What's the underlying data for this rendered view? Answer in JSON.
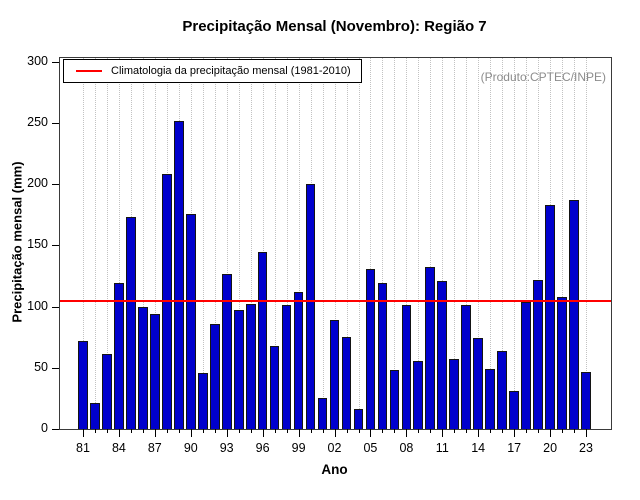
{
  "title": "Precipitação Mensal (Novembro): Região 7",
  "legend": {
    "label": "Climatologia da precipitação mensal (1981-2010)"
  },
  "watermark": "(Produto:CPTEC/INPE)",
  "colors": {
    "bar": "#0000CD",
    "climatology_line": "#FF0000",
    "watermark_gray": "#8C8C8C",
    "grid": "#C2C2C2",
    "frame": "#3A3A3A"
  },
  "chart_data": {
    "type": "bar",
    "title": "Precipitação Mensal (Novembro): Região 7",
    "xlabel": "Ano",
    "ylabel": "Precipitação mensal (mm)",
    "ylim": [
      0,
      300
    ],
    "yticks": [
      0,
      50,
      100,
      150,
      200,
      250,
      300
    ],
    "grid": "vertical-dotted-per-year",
    "legend_position": "top-left",
    "climatology_value": 105,
    "climatology_label": "Climatologia da precipitação mensal (1981-2010)",
    "xtick_labels": [
      "81",
      "84",
      "87",
      "90",
      "93",
      "96",
      "99",
      "02",
      "05",
      "08",
      "11",
      "14",
      "17",
      "20",
      "23"
    ],
    "categories": [
      "81",
      "82",
      "83",
      "84",
      "85",
      "86",
      "87",
      "88",
      "89",
      "90",
      "91",
      "92",
      "93",
      "94",
      "95",
      "96",
      "97",
      "98",
      "99",
      "00",
      "01",
      "02",
      "03",
      "04",
      "05",
      "06",
      "07",
      "08",
      "09",
      "10",
      "11",
      "12",
      "13",
      "14",
      "15",
      "16",
      "17",
      "18",
      "19",
      "20",
      "21",
      "22",
      "23"
    ],
    "values": [
      72,
      21,
      61,
      119,
      173,
      100,
      94,
      208,
      252,
      176,
      46,
      86,
      127,
      97,
      102,
      145,
      68,
      101,
      112,
      200,
      25,
      89,
      75,
      16,
      131,
      119,
      48,
      101,
      56,
      132,
      121,
      57,
      101,
      74,
      49,
      64,
      31,
      104,
      122,
      183,
      108,
      187,
      47
    ]
  }
}
